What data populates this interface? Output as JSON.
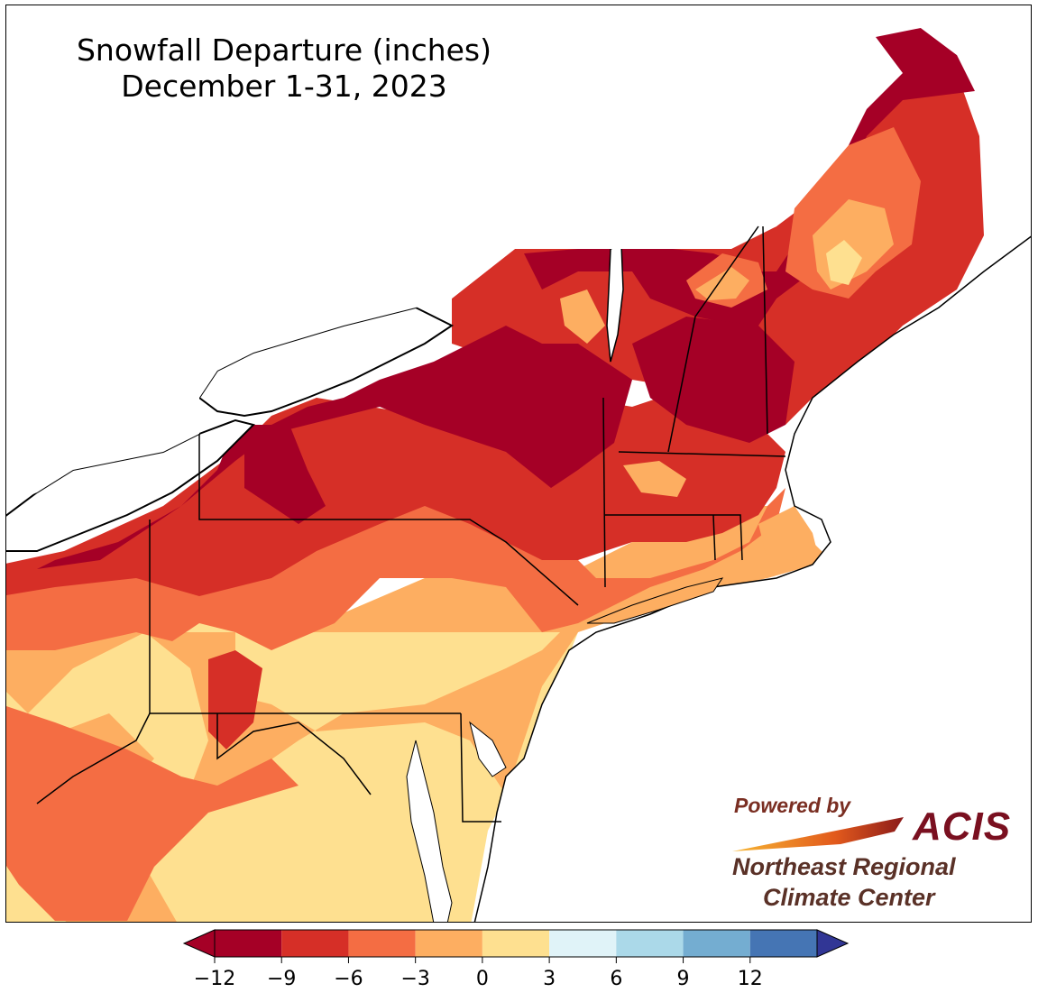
{
  "title": {
    "line1": "Snowfall Departure (inches)",
    "line2": "December 1-31, 2023"
  },
  "logo": {
    "powered_by": "Powered by",
    "brand": "ACIS",
    "org_line1": "Northeast Regional",
    "org_line2": "Climate Center"
  },
  "colorbar": {
    "ticks": [
      "−12",
      "−9",
      "−6",
      "−3",
      "0",
      "3",
      "6",
      "9",
      "12"
    ],
    "bins": [
      {
        "color": "#a50026"
      },
      {
        "color": "#d62f27"
      },
      {
        "color": "#f46d43"
      },
      {
        "color": "#fdae61"
      },
      {
        "color": "#fee090"
      },
      {
        "color": "#e0f3f8"
      },
      {
        "color": "#abd9e9"
      },
      {
        "color": "#74add1"
      },
      {
        "color": "#4575b4"
      }
    ],
    "extend_low_color": "#a50026",
    "extend_high_color": "#313695"
  },
  "map_colors": {
    "dark_red": "#a50026",
    "red": "#d62f27",
    "orange": "#f46d43",
    "light_orange": "#fdae61",
    "yellow": "#fee090",
    "water": "#ffffff",
    "border": "#000000"
  }
}
